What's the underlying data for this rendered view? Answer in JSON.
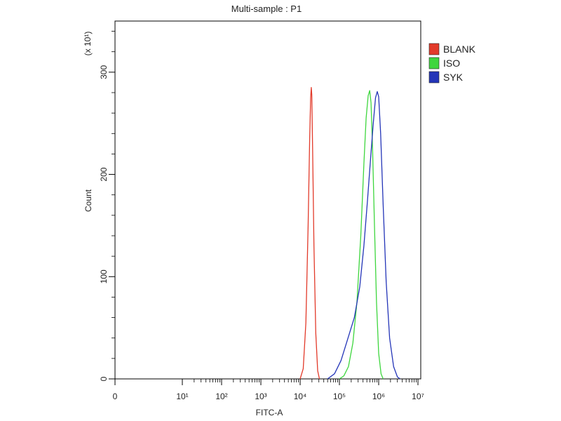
{
  "chart_data": {
    "type": "line",
    "title": "Multi-sample : P1",
    "xlabel": "FITC-A",
    "ylabel": "Count",
    "y_multiplier_label": "(x 10¹)",
    "xscale": "log",
    "xlim": [
      0,
      10000000
    ],
    "ylim": [
      0,
      350
    ],
    "x_ticks": [
      {
        "value": 0,
        "label": "0"
      },
      {
        "value": 10,
        "label": "10¹"
      },
      {
        "value": 100,
        "label": "10²"
      },
      {
        "value": 1000,
        "label": "10³"
      },
      {
        "value": 10000,
        "label": "10⁴"
      },
      {
        "value": 100000,
        "label": "10⁵"
      },
      {
        "value": 1000000,
        "label": "10⁶"
      },
      {
        "value": 10000000,
        "label": "10⁷"
      }
    ],
    "y_ticks": [
      {
        "value": 0,
        "label": "0"
      },
      {
        "value": 100,
        "label": "100"
      },
      {
        "value": 200,
        "label": "200"
      },
      {
        "value": 300,
        "label": "300"
      }
    ],
    "legend_position": "top-right",
    "series": [
      {
        "name": "BLANK",
        "color": "#e23a2a",
        "points": [
          [
            10000,
            0
          ],
          [
            12000,
            10
          ],
          [
            14000,
            55
          ],
          [
            16000,
            150
          ],
          [
            17500,
            235
          ],
          [
            18500,
            275
          ],
          [
            19200,
            285
          ],
          [
            19800,
            278
          ],
          [
            20800,
            225
          ],
          [
            22500,
            130
          ],
          [
            25000,
            45
          ],
          [
            28000,
            8
          ],
          [
            31000,
            0
          ]
        ]
      },
      {
        "name": "ISO",
        "color": "#3ed63e",
        "points": [
          [
            100000,
            0
          ],
          [
            130000,
            3
          ],
          [
            170000,
            12
          ],
          [
            220000,
            35
          ],
          [
            280000,
            75
          ],
          [
            350000,
            140
          ],
          [
            420000,
            210
          ],
          [
            480000,
            255
          ],
          [
            540000,
            277
          ],
          [
            590000,
            282
          ],
          [
            640000,
            270
          ],
          [
            700000,
            225
          ],
          [
            780000,
            150
          ],
          [
            880000,
            75
          ],
          [
            1000000,
            25
          ],
          [
            1150000,
            5
          ],
          [
            1300000,
            0
          ]
        ]
      },
      {
        "name": "SYK",
        "color": "#2435b8",
        "points": [
          [
            50000,
            0
          ],
          [
            75000,
            5
          ],
          [
            110000,
            18
          ],
          [
            160000,
            38
          ],
          [
            240000,
            60
          ],
          [
            330000,
            90
          ],
          [
            420000,
            130
          ],
          [
            520000,
            175
          ],
          [
            620000,
            215
          ],
          [
            730000,
            250
          ],
          [
            830000,
            275
          ],
          [
            920000,
            281
          ],
          [
            1000000,
            276
          ],
          [
            1120000,
            240
          ],
          [
            1300000,
            170
          ],
          [
            1550000,
            95
          ],
          [
            1900000,
            40
          ],
          [
            2400000,
            12
          ],
          [
            3000000,
            2
          ],
          [
            3500000,
            0
          ]
        ]
      }
    ]
  }
}
